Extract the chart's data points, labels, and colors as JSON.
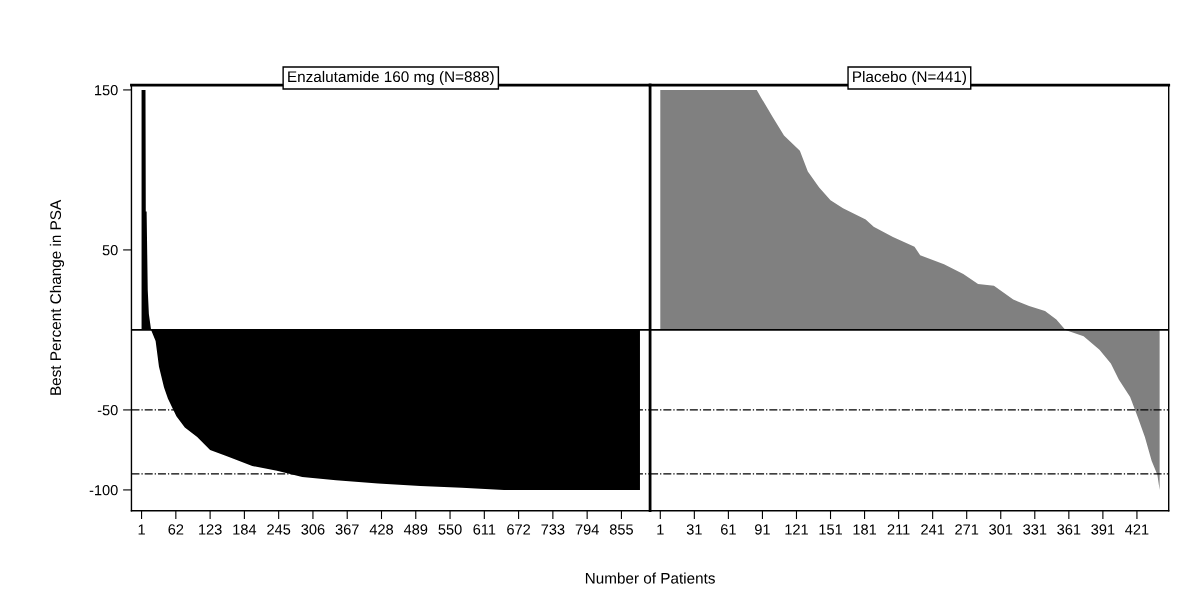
{
  "chart_data": [
    {
      "type": "area",
      "title": "Enzalutamide 160 mg (N=888)",
      "ylabel": "Best Percent Change in PSA",
      "xlabel": "Number of Patients",
      "series": [
        {
          "color": "#000000",
          "x": [
            1,
            8,
            8.5,
            10,
            12,
            14,
            18,
            26,
            32,
            41,
            48,
            63,
            78,
            100,
            123,
            153,
            198,
            242,
            287,
            347,
            422,
            497,
            571,
            646,
            888
          ],
          "values": [
            150,
            150,
            74,
            74,
            25,
            10,
            0,
            -7,
            -23,
            -36,
            -43,
            -54,
            -61,
            -67,
            -75,
            -79,
            -85,
            -88,
            -92,
            -94,
            -96,
            -97.5,
            -98.6,
            -100,
            -100
          ]
        }
      ],
      "xlim": [
        -17,
        906
      ],
      "xticks": [
        1,
        62,
        123,
        184,
        245,
        306,
        367,
        428,
        489,
        550,
        611,
        672,
        733,
        794,
        855
      ],
      "ylim": [
        -113,
        153
      ],
      "yticks": [
        150,
        50,
        -50,
        -100
      ],
      "ref_lines": [
        {
          "axis": "y",
          "value": 0,
          "color": "#000000",
          "line_style": "solid"
        },
        {
          "axis": "y",
          "value": -50,
          "color": "#000000",
          "line_style": "dashed"
        },
        {
          "axis": "y",
          "value": -90,
          "color": "#000000",
          "line_style": "dashed"
        }
      ],
      "grid": false,
      "legend": false
    },
    {
      "type": "area",
      "title": "Placebo (N=441)",
      "series": [
        {
          "color": "#808080",
          "x": [
            1,
            86,
            90,
            100,
            110,
            124,
            131,
            141,
            151,
            162,
            182,
            189,
            206,
            225,
            230,
            251,
            268,
            281,
            295,
            312,
            326,
            340,
            350,
            358,
            374,
            388,
            398,
            405,
            415,
            422,
            428,
            434,
            439,
            441
          ],
          "values": [
            150,
            150,
            145,
            133,
            121.5,
            112,
            99,
            89,
            81,
            76,
            69,
            64.5,
            58,
            52,
            46.6,
            41,
            35,
            28.7,
            27.6,
            19,
            15,
            11.8,
            6.5,
            0,
            -4,
            -12.4,
            -21,
            -31,
            -42,
            -55,
            -67,
            -82,
            -90.5,
            -100
          ]
        }
      ],
      "xlim": [
        -8,
        449
      ],
      "xticks": [
        1,
        31,
        61,
        91,
        121,
        151,
        181,
        211,
        241,
        271,
        301,
        331,
        361,
        391,
        421
      ],
      "ylim": [
        -113,
        153
      ],
      "yticks": [
        150,
        50,
        -50,
        -100
      ],
      "tick_labels": "x",
      "ref_lines": [
        {
          "axis": "y",
          "value": 0,
          "color": "#000000",
          "line_style": "solid"
        },
        {
          "axis": "y",
          "value": -50,
          "color": "#000000",
          "line_style": "dashed"
        },
        {
          "axis": "y",
          "value": -90,
          "color": "#000000",
          "line_style": "dashed"
        }
      ],
      "grid": false,
      "legend": false
    }
  ]
}
